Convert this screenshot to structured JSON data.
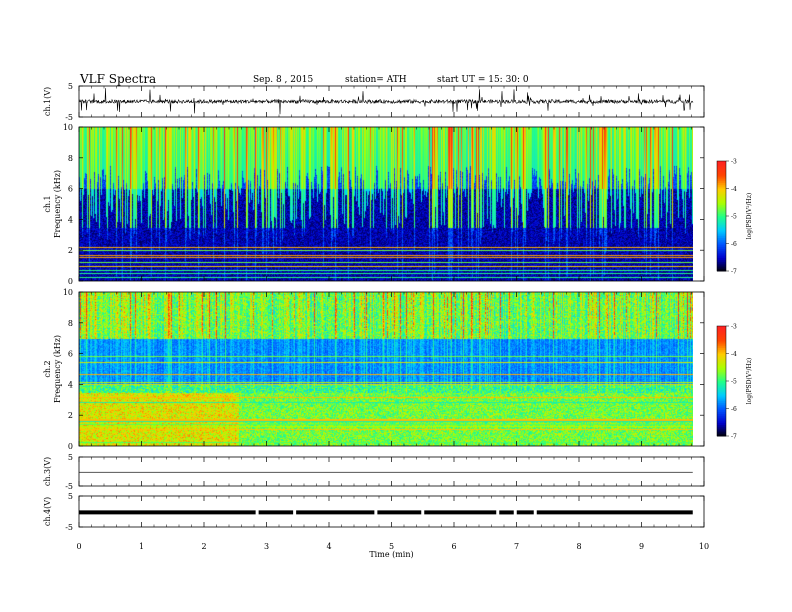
{
  "header": {
    "title": "VLF  Spectra",
    "date": "Sep. 8  , 2015",
    "station": "station= ATH",
    "start": "start  UT =   15: 30: 0"
  },
  "chart_data": [
    {
      "type": "line",
      "ylabel": "ch.1(V)",
      "ylim": [
        -5,
        5
      ],
      "yticks": [
        "5",
        "-5"
      ],
      "description_level": 0
    },
    {
      "type": "heatmap",
      "ylabel": "Frequency  (kHz)",
      "channel": "ch.1",
      "ylim": [
        0,
        10
      ],
      "yticks": [
        "0",
        "2",
        "4",
        "6",
        "8",
        "10"
      ],
      "colorbar": {
        "label": "log(PSD(V²/Hz)",
        "range": [
          -7,
          -3
        ],
        "ticks": [
          "-3",
          "-4",
          "-5",
          "-6",
          "-7"
        ]
      }
    },
    {
      "type": "heatmap",
      "ylabel": "Frequency  (kHz)",
      "channel": "ch.2",
      "ylim": [
        0,
        10
      ],
      "yticks": [
        "0",
        "2",
        "4",
        "6",
        "8",
        "10"
      ],
      "colorbar": {
        "label": "log(PSD(V²/Hz)",
        "range": [
          -7,
          -3
        ],
        "ticks": [
          "-3",
          "-4",
          "-5",
          "-6",
          "-7"
        ]
      }
    },
    {
      "type": "line",
      "ylabel": "ch.3(V)",
      "ylim": [
        -5,
        5
      ],
      "yticks": [
        "5",
        "-5"
      ],
      "level": -0.3
    },
    {
      "type": "line",
      "ylabel": "ch.4(V)",
      "ylim": [
        -5,
        5
      ],
      "yticks": [
        "5",
        "-5"
      ],
      "level": -0.3,
      "gaps_min": [
        2.85,
        3.45,
        4.75,
        5.5,
        6.7,
        6.98,
        7.3
      ]
    }
  ],
  "x_axis": {
    "label": "Time  (min)",
    "xlim": [
      0,
      10
    ],
    "ticks": [
      "0",
      "1",
      "2",
      "3",
      "4",
      "5",
      "6",
      "7",
      "8",
      "9",
      "10"
    ],
    "data_end": 9.82
  },
  "colors": {
    "low": "#000000",
    "scale": [
      "#000000",
      "#0000cc",
      "#0055ff",
      "#00ccff",
      "#22ff88",
      "#aaff00",
      "#ffcc00",
      "#ff4400",
      "#ff2222"
    ]
  }
}
